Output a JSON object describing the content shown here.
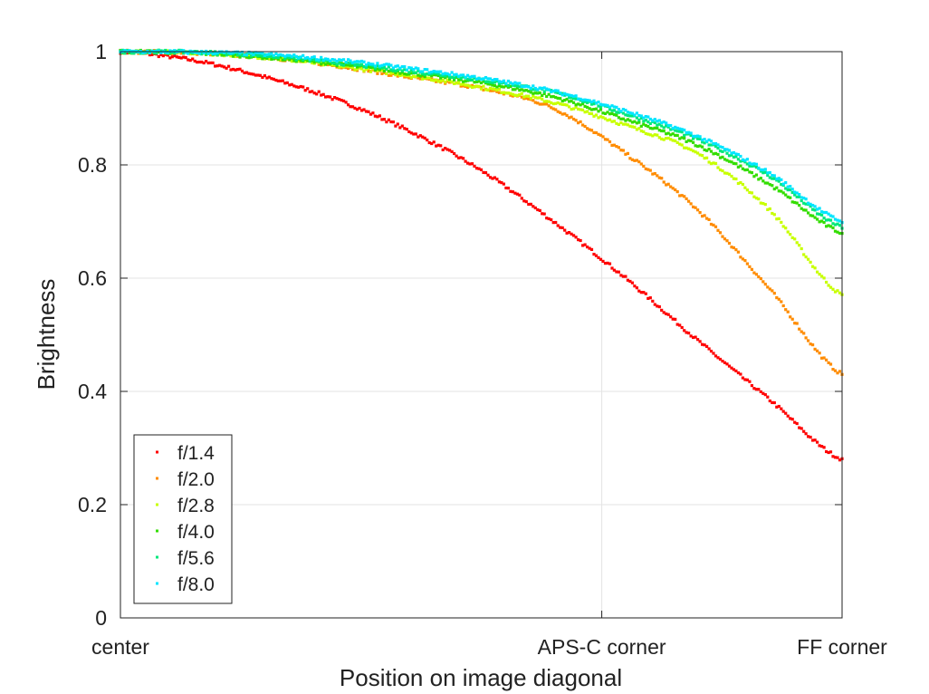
{
  "chart_data": {
    "type": "line",
    "title": "",
    "xlabel": "Position on image diagonal",
    "ylabel": "Brightness",
    "xlim": [
      0,
      1
    ],
    "ylim": [
      0,
      1
    ],
    "grid": true,
    "legend_placement": "bottom-left",
    "x_ticks": [
      {
        "value": 0,
        "label": "center"
      },
      {
        "value": 0.667,
        "label": "APS-C corner"
      },
      {
        "value": 1,
        "label": "FF corner"
      }
    ],
    "y_ticks": [
      {
        "value": 0,
        "label": "0"
      },
      {
        "value": 0.2,
        "label": "0.2"
      },
      {
        "value": 0.4,
        "label": "0.4"
      },
      {
        "value": 0.6,
        "label": "0.6"
      },
      {
        "value": 0.8,
        "label": "0.8"
      },
      {
        "value": 1,
        "label": "1"
      }
    ],
    "x": [
      0,
      0.1,
      0.2,
      0.3,
      0.4,
      0.5,
      0.6,
      0.7,
      0.8,
      0.9,
      1.0
    ],
    "series": [
      {
        "name": "f/1.4",
        "color": "#ff0000",
        "values": [
          1.0,
          0.985,
          0.955,
          0.915,
          0.86,
          0.79,
          0.7,
          0.6,
          0.49,
          0.385,
          0.28
        ]
      },
      {
        "name": "f/2.0",
        "color": "#ff8c00",
        "values": [
          1.0,
          0.998,
          0.99,
          0.975,
          0.955,
          0.935,
          0.9,
          0.82,
          0.72,
          0.58,
          0.43
        ]
      },
      {
        "name": "f/2.8",
        "color": "#c8ff00",
        "values": [
          1.0,
          0.998,
          0.99,
          0.975,
          0.958,
          0.937,
          0.91,
          0.87,
          0.82,
          0.72,
          0.57
        ]
      },
      {
        "name": "f/4.0",
        "color": "#33dd00",
        "values": [
          1.0,
          0.998,
          0.99,
          0.978,
          0.962,
          0.945,
          0.92,
          0.88,
          0.835,
          0.765,
          0.68
        ]
      },
      {
        "name": "f/5.6",
        "color": "#00e87c",
        "values": [
          1.0,
          0.999,
          0.993,
          0.98,
          0.966,
          0.95,
          0.928,
          0.89,
          0.845,
          0.78,
          0.69
        ]
      },
      {
        "name": "f/8.0",
        "color": "#00e5ff",
        "values": [
          1.0,
          0.999,
          0.995,
          0.985,
          0.97,
          0.953,
          0.93,
          0.895,
          0.85,
          0.785,
          0.7
        ]
      }
    ]
  }
}
